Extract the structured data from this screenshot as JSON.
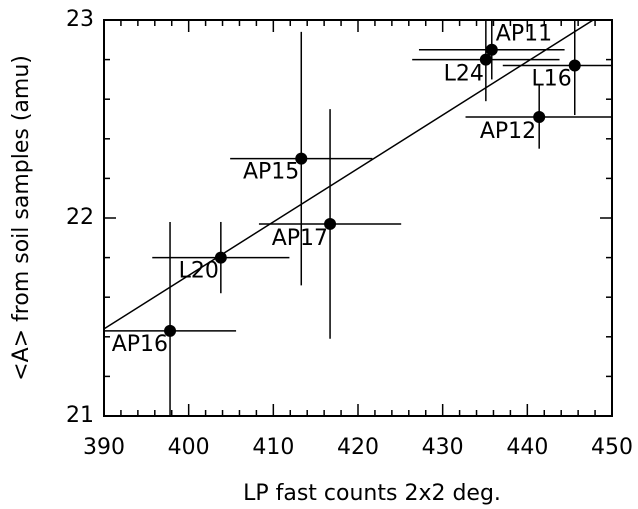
{
  "chart_data": {
    "type": "scatter",
    "xlabel": "LP fast counts 2x2 deg.",
    "ylabel": "<A> from soil samples (amu)",
    "xlim": [
      390,
      450
    ],
    "ylim": [
      21,
      23
    ],
    "xticks": [
      390,
      400,
      410,
      420,
      430,
      440,
      450
    ],
    "yticks": [
      21,
      22,
      23
    ],
    "xminorticks": [
      392,
      394,
      396,
      398,
      402,
      404,
      406,
      408,
      412,
      414,
      416,
      418,
      422,
      424,
      426,
      428,
      432,
      434,
      436,
      438,
      442,
      444,
      446,
      448
    ],
    "yminorticks": [
      21.2,
      21.4,
      21.6,
      21.8,
      22.2,
      22.4,
      22.6,
      22.8
    ],
    "color": "#000000",
    "series": [
      {
        "labels": [
          "AP16",
          "L20",
          "AP15",
          "AP17",
          "L24",
          "AP11",
          "AP12",
          "L16"
        ],
        "x": [
          397.8,
          403.8,
          413.3,
          416.7,
          435.1,
          435.8,
          441.4,
          445.6
        ],
        "values": [
          21.43,
          21.8,
          22.3,
          21.97,
          22.8,
          22.85,
          22.51,
          22.77
        ],
        "xerr": [
          7.8,
          8.1,
          8.4,
          8.4,
          8.7,
          8.6,
          8.7,
          8.5
        ],
        "yerr": [
          0.55,
          0.18,
          0.64,
          0.58,
          0.21,
          0.15,
          0.16,
          0.25
        ]
      }
    ],
    "fit": {
      "x": [
        390,
        450
      ],
      "y": [
        21.44,
        23.06
      ]
    }
  }
}
